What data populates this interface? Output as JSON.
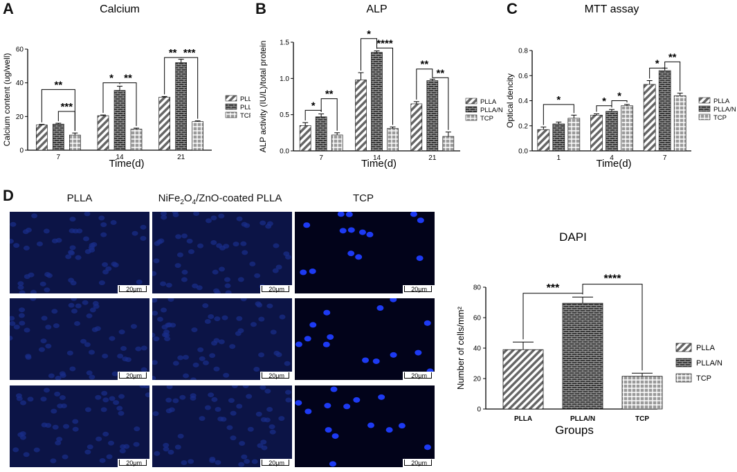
{
  "panels": {
    "A": "A",
    "B": "B",
    "C": "C",
    "D": "D"
  },
  "micro": {
    "columns": [
      "PLLA",
      "NiFe2O4/ZnO-coated PLLA",
      "TCP"
    ],
    "col2_parts": {
      "a": "NiFe",
      "s1": "2",
      "b": "O",
      "s2": "4",
      "c": "/ZnO-coated PLLA"
    },
    "scale_label": "20μm"
  },
  "chart_data": [
    {
      "type": "bar",
      "id": "A",
      "title": "Calcium",
      "xlabel": "Time(d)",
      "ylabel": "Calcium content (ug/well)",
      "ylim": [
        0,
        60
      ],
      "yticks": [
        0,
        20,
        40,
        60
      ],
      "categories": [
        "7",
        "14",
        "21"
      ],
      "series": [
        {
          "name": "PLLA",
          "values": [
            15,
            20.5,
            31.5
          ],
          "errors": [
            0.3,
            0.4,
            0.4
          ],
          "pattern": "diag"
        },
        {
          "name": "PLLA/N",
          "values": [
            15.5,
            35.5,
            52
          ],
          "errors": [
            0.5,
            2.5,
            2
          ],
          "pattern": "brick"
        },
        {
          "name": "TCP",
          "values": [
            9,
            12.5,
            17
          ],
          "errors": [
            1.2,
            0.6,
            0.4
          ],
          "pattern": "grid"
        }
      ],
      "annotations": [
        {
          "text": "**",
          "group": 0,
          "from": 0,
          "to": 2,
          "level": 36
        },
        {
          "text": "***",
          "group": 0,
          "from": 1,
          "to": 2,
          "level": 23
        },
        {
          "text": "*",
          "group": 1,
          "from": 0,
          "to": 1,
          "level": 40
        },
        {
          "text": "**",
          "group": 1,
          "from": 1,
          "to": 2,
          "level": 40
        },
        {
          "text": "**",
          "group": 2,
          "from": 0,
          "to": 1,
          "level": 55
        },
        {
          "text": "***",
          "group": 2,
          "from": 1,
          "to": 2,
          "level": 55
        }
      ]
    },
    {
      "type": "bar",
      "id": "B",
      "title": "ALP",
      "xlabel": "Time(d)",
      "ylabel": "ALP activity (IU/L)/total protein",
      "ylim": [
        0,
        1.5
      ],
      "yticks": [
        0.0,
        0.5,
        1.0,
        1.5
      ],
      "categories": [
        "7",
        "14",
        "21"
      ],
      "series": [
        {
          "name": "PLLA",
          "values": [
            0.35,
            0.98,
            0.65
          ],
          "errors": [
            0.04,
            0.1,
            0.03
          ],
          "pattern": "diag"
        },
        {
          "name": "PLLA/N",
          "values": [
            0.47,
            1.36,
            0.97
          ],
          "errors": [
            0.04,
            0.02,
            0.02
          ],
          "pattern": "brick"
        },
        {
          "name": "TCP",
          "values": [
            0.22,
            0.31,
            0.2
          ],
          "errors": [
            0.03,
            0.02,
            0.06
          ],
          "pattern": "grid"
        }
      ],
      "annotations": [
        {
          "text": "*",
          "group": 0,
          "from": 0,
          "to": 1,
          "level": 0.56
        },
        {
          "text": "**",
          "group": 0,
          "from": 1,
          "to": 2,
          "level": 0.72
        },
        {
          "text": "*",
          "group": 1,
          "from": 0,
          "to": 1,
          "level": 1.55
        },
        {
          "text": "****",
          "group": 1,
          "from": 1,
          "to": 2,
          "level": 1.42
        },
        {
          "text": "**",
          "group": 2,
          "from": 0,
          "to": 1,
          "level": 1.13
        },
        {
          "text": "**",
          "group": 2,
          "from": 1,
          "to": 2,
          "level": 1.01
        }
      ]
    },
    {
      "type": "bar",
      "id": "C",
      "title": "MTT assay",
      "xlabel": "Time(d)",
      "ylabel": "Optical dencity",
      "ylim": [
        0,
        0.8
      ],
      "yticks": [
        0.0,
        0.2,
        0.4,
        0.6,
        0.8
      ],
      "categories": [
        "1",
        "4",
        "7"
      ],
      "series": [
        {
          "name": "PLLA",
          "values": [
            0.17,
            0.285,
            0.53
          ],
          "errors": [
            0.02,
            0.01,
            0.03
          ],
          "pattern": "diag"
        },
        {
          "name": "PLLA/N",
          "values": [
            0.215,
            0.315,
            0.64
          ],
          "errors": [
            0.015,
            0.015,
            0.02
          ],
          "pattern": "brick"
        },
        {
          "name": "TCP",
          "values": [
            0.26,
            0.36,
            0.44
          ],
          "errors": [
            0.025,
            0.01,
            0.02
          ],
          "pattern": "grid"
        }
      ],
      "annotations": [
        {
          "text": "*",
          "group": 0,
          "from": 0,
          "to": 2,
          "level": 0.37
        },
        {
          "text": "*",
          "group": 1,
          "from": 0,
          "to": 1,
          "level": 0.36
        },
        {
          "text": "*",
          "group": 1,
          "from": 1,
          "to": 2,
          "level": 0.4
        },
        {
          "text": "*",
          "group": 2,
          "from": 0,
          "to": 1,
          "level": 0.66
        },
        {
          "text": "**",
          "group": 2,
          "from": 1,
          "to": 2,
          "level": 0.71
        }
      ]
    },
    {
      "type": "bar",
      "id": "DAPI",
      "title": "DAPI",
      "xlabel": "Groups",
      "ylabel": "Number of cells/mm²",
      "ylim": [
        0,
        80
      ],
      "yticks": [
        0,
        20,
        40,
        60,
        80
      ],
      "categories": [
        "PLLA",
        "PLLA/N",
        "TCP"
      ],
      "series": [
        {
          "name": "Number of cells/mm²",
          "values": [
            39,
            69.5,
            21.5
          ],
          "errors": [
            5,
            4,
            2
          ],
          "pattern": "mixed"
        }
      ],
      "legend": [
        {
          "name": "PLLA",
          "pattern": "diag"
        },
        {
          "name": "PLLA/N",
          "pattern": "brick"
        },
        {
          "name": "TCP",
          "pattern": "grid"
        }
      ],
      "annotations": [
        {
          "text": "***",
          "from": 0,
          "to": 1,
          "level": 76
        },
        {
          "text": "****",
          "from": 1,
          "to": 2,
          "level": 82
        }
      ]
    }
  ]
}
